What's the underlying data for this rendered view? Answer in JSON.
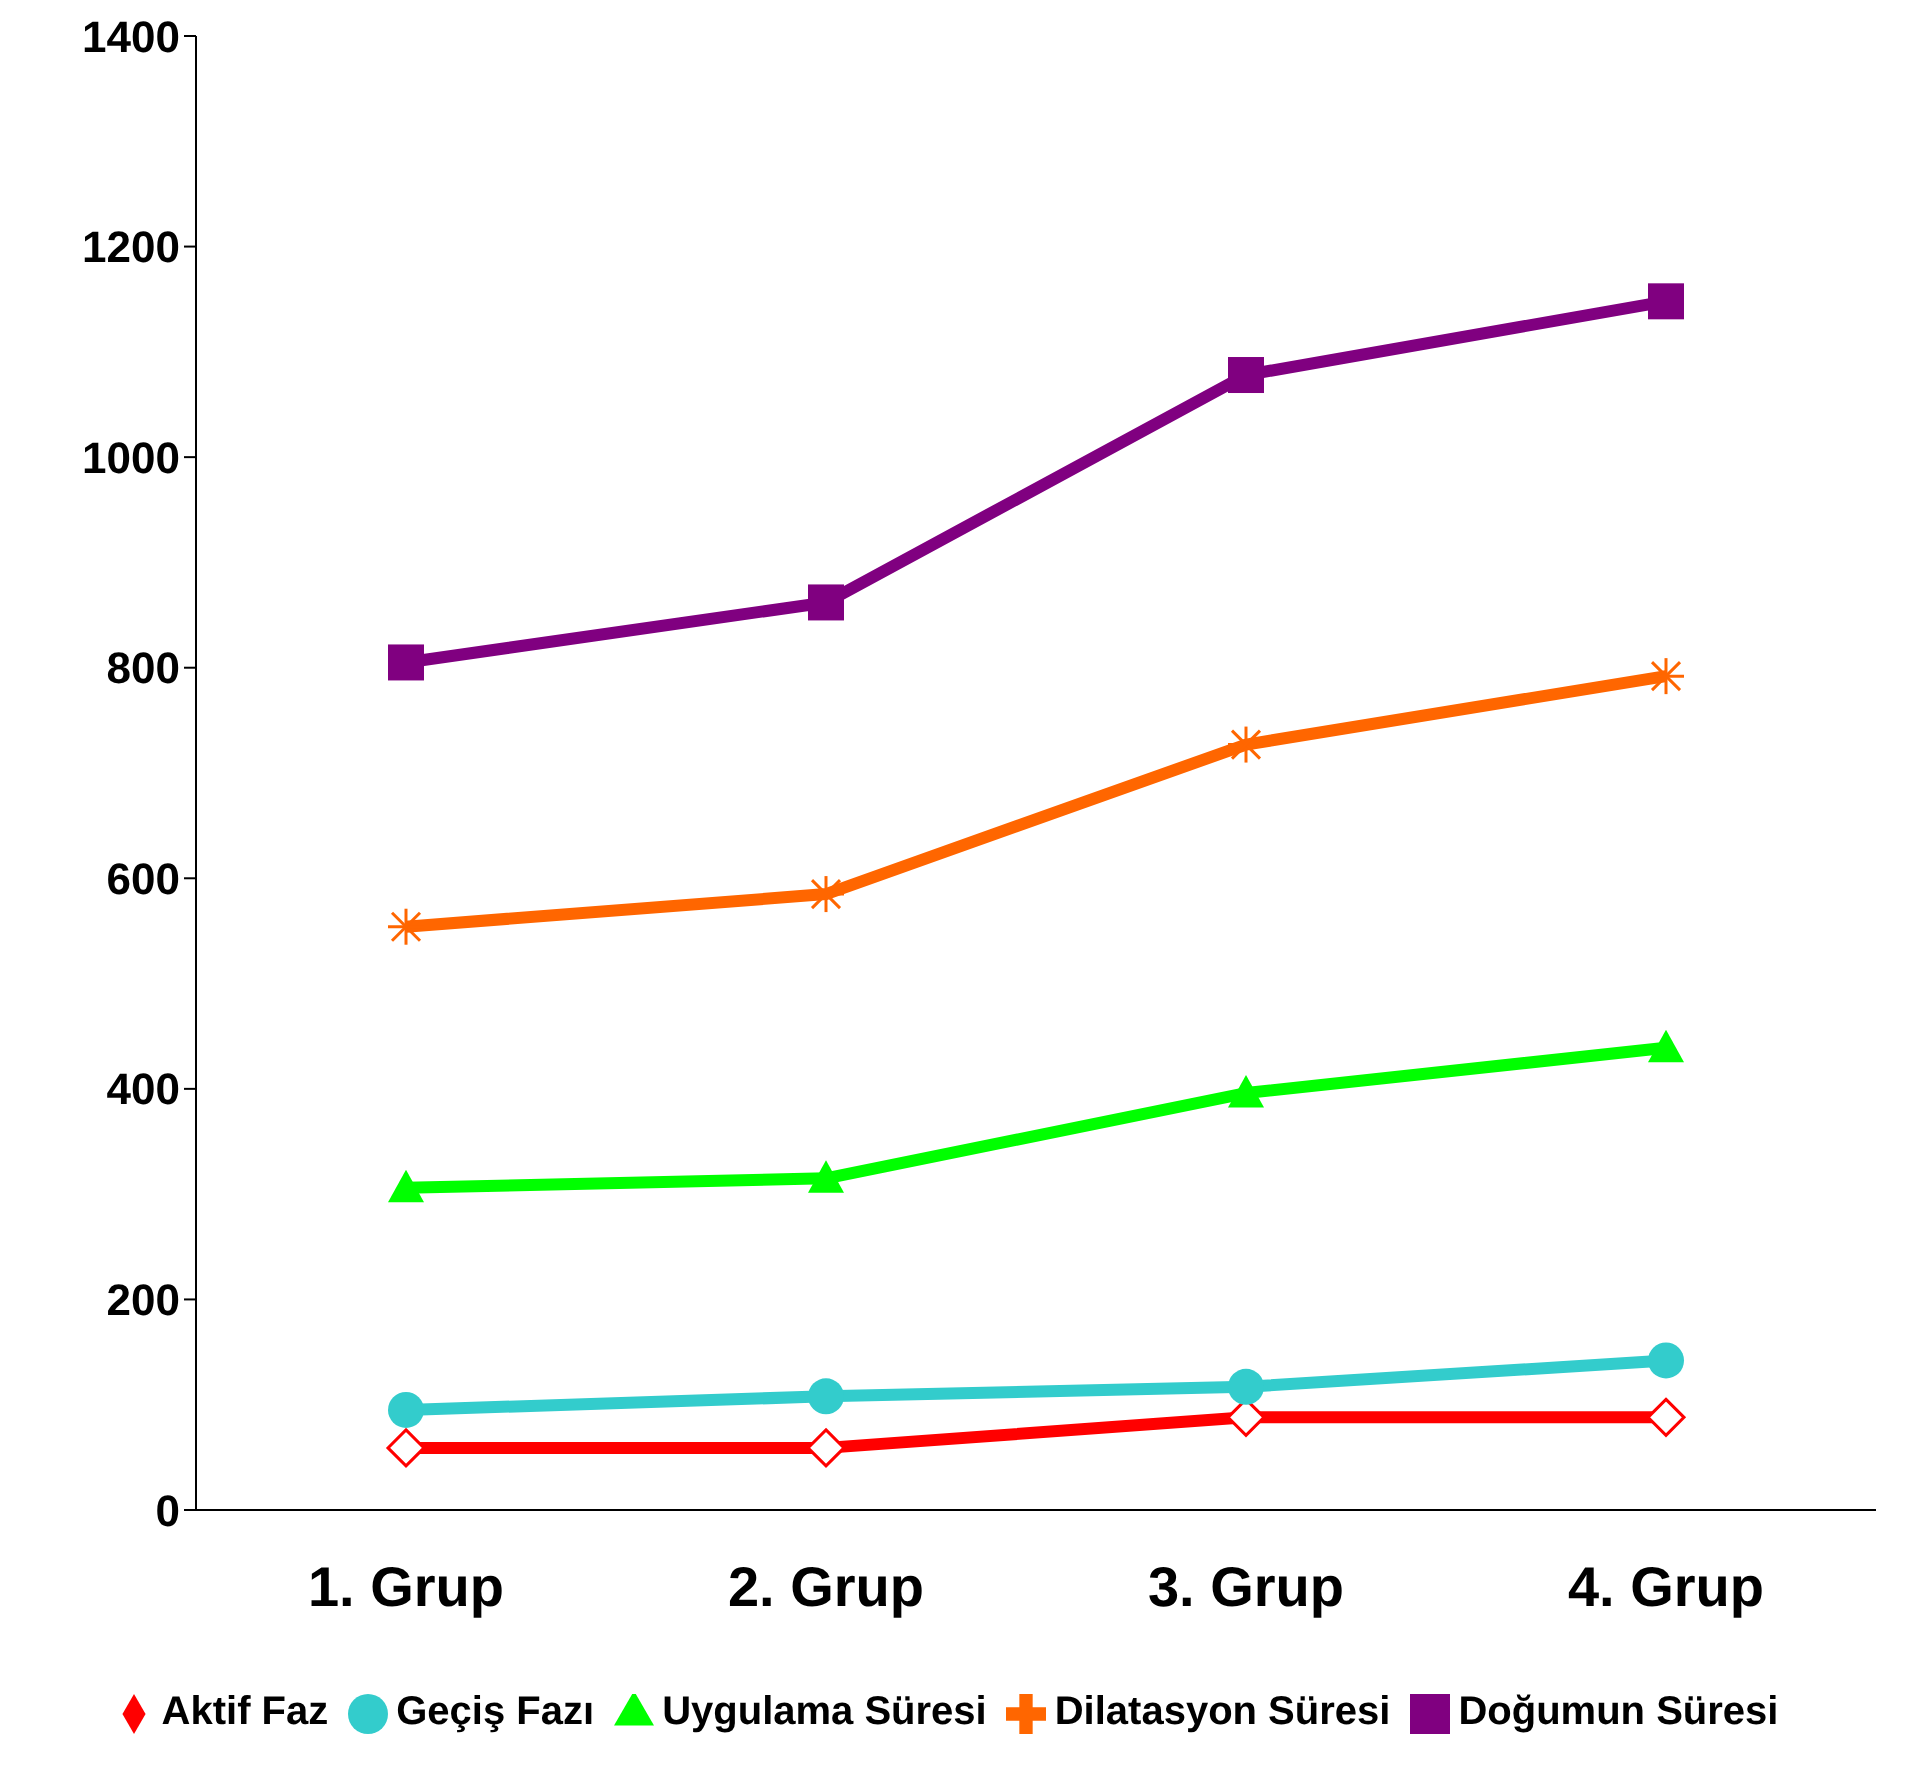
{
  "chart_data": {
    "type": "line",
    "categories": [
      "1. Grup",
      "2. Grup",
      "3. Grup",
      "4. Grup"
    ],
    "series": [
      {
        "name": "Aktif Faz",
        "color": "#ff0000",
        "marker": "diamond",
        "values": [
          59,
          59,
          88,
          88
        ]
      },
      {
        "name": "Geçiş Fazı",
        "color": "#33cccc",
        "marker": "circle",
        "values": [
          95,
          108,
          117,
          142
        ]
      },
      {
        "name": "Uygulama Süresi",
        "color": "#00ff00",
        "marker": "triangle",
        "values": [
          306,
          315,
          396,
          439
        ]
      },
      {
        "name": "Dilatasyon Süresi",
        "color": "#ff6600",
        "marker": "cross",
        "values": [
          554,
          585,
          727,
          792
        ]
      },
      {
        "name": "Doğumun Süresi",
        "color": "#800080",
        "marker": "square",
        "values": [
          805,
          862,
          1078,
          1148
        ]
      }
    ],
    "ylim": [
      0,
      1400
    ],
    "yticks": [
      0,
      200,
      400,
      600,
      800,
      1000,
      1200,
      1400
    ],
    "grid": false,
    "legend": "bottom"
  }
}
